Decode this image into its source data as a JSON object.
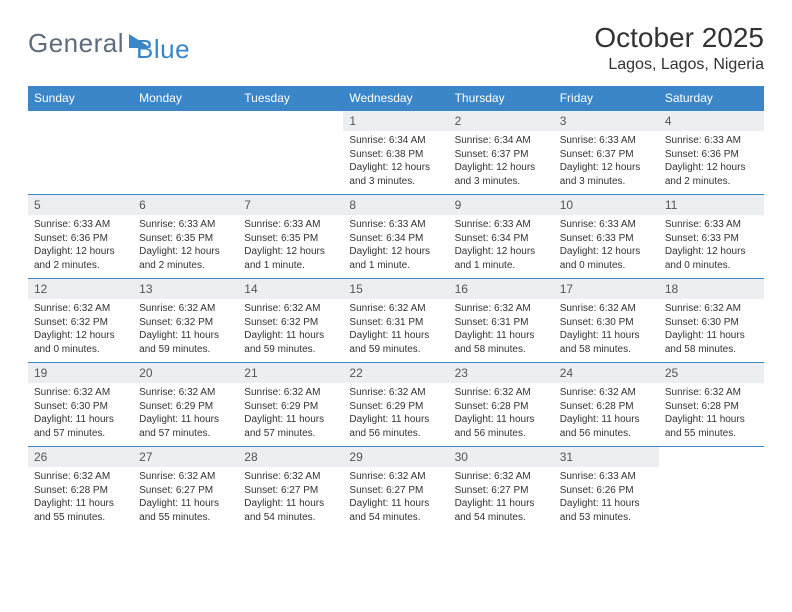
{
  "logo": {
    "word1": "General",
    "word2": "Blue"
  },
  "title": "October 2025",
  "location": "Lagos, Lagos, Nigeria",
  "colors": {
    "brand": "#3a86c8",
    "header_bg": "#3a86c8",
    "daynum_bg": "#eceff1",
    "text": "#333333",
    "logo_gray": "#5d6d7e"
  },
  "day_headers": [
    "Sunday",
    "Monday",
    "Tuesday",
    "Wednesday",
    "Thursday",
    "Friday",
    "Saturday"
  ],
  "weeks": [
    [
      {
        "n": "",
        "sr": "",
        "ss": "",
        "dl": ""
      },
      {
        "n": "",
        "sr": "",
        "ss": "",
        "dl": ""
      },
      {
        "n": "",
        "sr": "",
        "ss": "",
        "dl": ""
      },
      {
        "n": "1",
        "sr": "6:34 AM",
        "ss": "6:38 PM",
        "dl": "12 hours and 3 minutes."
      },
      {
        "n": "2",
        "sr": "6:34 AM",
        "ss": "6:37 PM",
        "dl": "12 hours and 3 minutes."
      },
      {
        "n": "3",
        "sr": "6:33 AM",
        "ss": "6:37 PM",
        "dl": "12 hours and 3 minutes."
      },
      {
        "n": "4",
        "sr": "6:33 AM",
        "ss": "6:36 PM",
        "dl": "12 hours and 2 minutes."
      }
    ],
    [
      {
        "n": "5",
        "sr": "6:33 AM",
        "ss": "6:36 PM",
        "dl": "12 hours and 2 minutes."
      },
      {
        "n": "6",
        "sr": "6:33 AM",
        "ss": "6:35 PM",
        "dl": "12 hours and 2 minutes."
      },
      {
        "n": "7",
        "sr": "6:33 AM",
        "ss": "6:35 PM",
        "dl": "12 hours and 1 minute."
      },
      {
        "n": "8",
        "sr": "6:33 AM",
        "ss": "6:34 PM",
        "dl": "12 hours and 1 minute."
      },
      {
        "n": "9",
        "sr": "6:33 AM",
        "ss": "6:34 PM",
        "dl": "12 hours and 1 minute."
      },
      {
        "n": "10",
        "sr": "6:33 AM",
        "ss": "6:33 PM",
        "dl": "12 hours and 0 minutes."
      },
      {
        "n": "11",
        "sr": "6:33 AM",
        "ss": "6:33 PM",
        "dl": "12 hours and 0 minutes."
      }
    ],
    [
      {
        "n": "12",
        "sr": "6:32 AM",
        "ss": "6:32 PM",
        "dl": "12 hours and 0 minutes."
      },
      {
        "n": "13",
        "sr": "6:32 AM",
        "ss": "6:32 PM",
        "dl": "11 hours and 59 minutes."
      },
      {
        "n": "14",
        "sr": "6:32 AM",
        "ss": "6:32 PM",
        "dl": "11 hours and 59 minutes."
      },
      {
        "n": "15",
        "sr": "6:32 AM",
        "ss": "6:31 PM",
        "dl": "11 hours and 59 minutes."
      },
      {
        "n": "16",
        "sr": "6:32 AM",
        "ss": "6:31 PM",
        "dl": "11 hours and 58 minutes."
      },
      {
        "n": "17",
        "sr": "6:32 AM",
        "ss": "6:30 PM",
        "dl": "11 hours and 58 minutes."
      },
      {
        "n": "18",
        "sr": "6:32 AM",
        "ss": "6:30 PM",
        "dl": "11 hours and 58 minutes."
      }
    ],
    [
      {
        "n": "19",
        "sr": "6:32 AM",
        "ss": "6:30 PM",
        "dl": "11 hours and 57 minutes."
      },
      {
        "n": "20",
        "sr": "6:32 AM",
        "ss": "6:29 PM",
        "dl": "11 hours and 57 minutes."
      },
      {
        "n": "21",
        "sr": "6:32 AM",
        "ss": "6:29 PM",
        "dl": "11 hours and 57 minutes."
      },
      {
        "n": "22",
        "sr": "6:32 AM",
        "ss": "6:29 PM",
        "dl": "11 hours and 56 minutes."
      },
      {
        "n": "23",
        "sr": "6:32 AM",
        "ss": "6:28 PM",
        "dl": "11 hours and 56 minutes."
      },
      {
        "n": "24",
        "sr": "6:32 AM",
        "ss": "6:28 PM",
        "dl": "11 hours and 56 minutes."
      },
      {
        "n": "25",
        "sr": "6:32 AM",
        "ss": "6:28 PM",
        "dl": "11 hours and 55 minutes."
      }
    ],
    [
      {
        "n": "26",
        "sr": "6:32 AM",
        "ss": "6:28 PM",
        "dl": "11 hours and 55 minutes."
      },
      {
        "n": "27",
        "sr": "6:32 AM",
        "ss": "6:27 PM",
        "dl": "11 hours and 55 minutes."
      },
      {
        "n": "28",
        "sr": "6:32 AM",
        "ss": "6:27 PM",
        "dl": "11 hours and 54 minutes."
      },
      {
        "n": "29",
        "sr": "6:32 AM",
        "ss": "6:27 PM",
        "dl": "11 hours and 54 minutes."
      },
      {
        "n": "30",
        "sr": "6:32 AM",
        "ss": "6:27 PM",
        "dl": "11 hours and 54 minutes."
      },
      {
        "n": "31",
        "sr": "6:33 AM",
        "ss": "6:26 PM",
        "dl": "11 hours and 53 minutes."
      },
      {
        "n": "",
        "sr": "",
        "ss": "",
        "dl": ""
      }
    ]
  ],
  "labels": {
    "sunrise": "Sunrise:",
    "sunset": "Sunset:",
    "daylight": "Daylight:"
  }
}
